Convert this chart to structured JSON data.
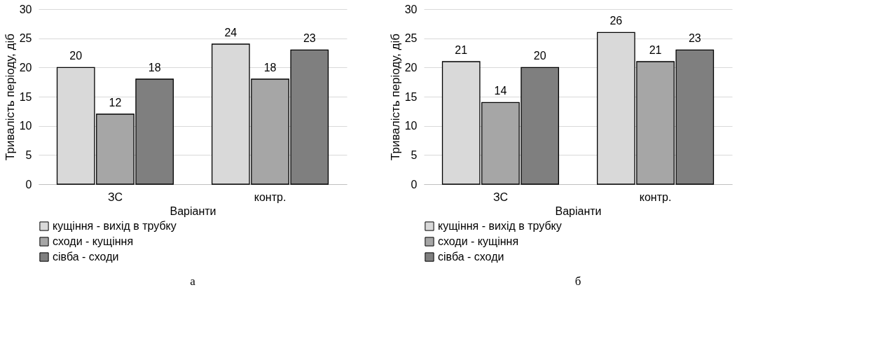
{
  "chart_data": [
    {
      "type": "bar",
      "categories": [
        "ЗС",
        "контр."
      ],
      "xlabel": "Варіанти",
      "ylabel": "Тривалість періоду, діб",
      "ylim": [
        0,
        30
      ],
      "yticks": [
        0,
        5,
        10,
        15,
        20,
        25,
        30
      ],
      "grid": "y",
      "legend": "bottom",
      "data_labels": true,
      "annotations": [
        "а"
      ],
      "series": [
        {
          "name": "кущіння - вихід в трубку",
          "color": "#d9d9d9",
          "values": [
            20,
            24
          ]
        },
        {
          "name": "сходи - кущіння",
          "color": "#a6a6a6",
          "values": [
            12,
            18
          ]
        },
        {
          "name": "сівба - сходи",
          "color": "#7f7f7f",
          "values": [
            18,
            23
          ]
        }
      ]
    },
    {
      "type": "bar",
      "categories": [
        "ЗС",
        "контр."
      ],
      "xlabel": "Варіанти",
      "ylabel": "Тривалість періоду, діб",
      "ylim": [
        0,
        30
      ],
      "yticks": [
        0,
        5,
        10,
        15,
        20,
        25,
        30
      ],
      "grid": "y",
      "legend": "bottom",
      "data_labels": true,
      "annotations": [
        "б"
      ],
      "series": [
        {
          "name": "кущіння - вихід в трубку",
          "color": "#d9d9d9",
          "values": [
            21,
            26
          ]
        },
        {
          "name": "сходи - кущіння",
          "color": "#a6a6a6",
          "values": [
            14,
            21
          ]
        },
        {
          "name": "сівба - сходи",
          "color": "#7f7f7f",
          "values": [
            20,
            23
          ]
        }
      ]
    }
  ]
}
